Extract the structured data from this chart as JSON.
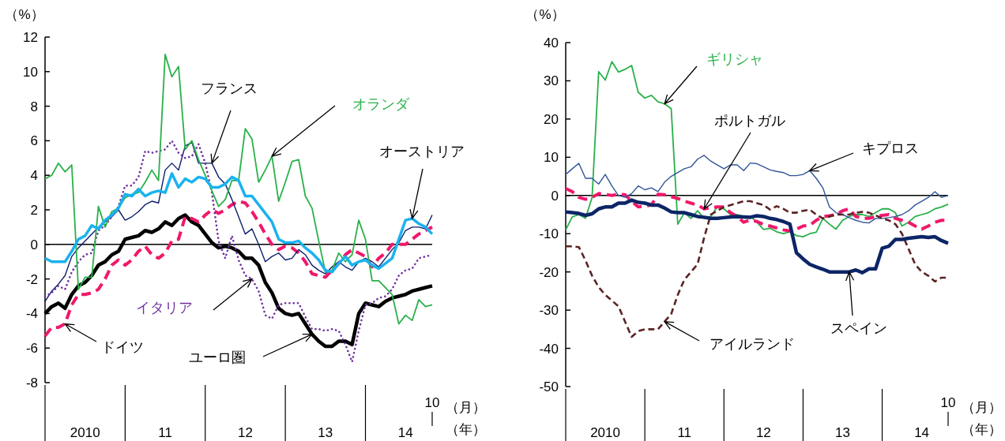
{
  "chart_data": [
    {
      "type": "line",
      "ylabel": "（%）",
      "xlabel": "（月）",
      "annotations": [
        "（年）"
      ],
      "categories": [
        null,
        null,
        null,
        null,
        null,
        null,
        "2010",
        null,
        null,
        null,
        null,
        null,
        null,
        null,
        null,
        null,
        null,
        null,
        "11",
        null,
        null,
        null,
        null,
        null,
        null,
        null,
        null,
        null,
        null,
        null,
        "12",
        null,
        null,
        null,
        null,
        null,
        null,
        null,
        null,
        null,
        null,
        null,
        "13",
        null,
        null,
        null,
        null,
        null,
        null,
        null,
        null,
        null,
        null,
        null,
        "14",
        null,
        null,
        null,
        "10"
      ],
      "ylim": [
        -8,
        12
      ],
      "yticks": [
        -8,
        -6,
        -4,
        -2,
        0,
        2,
        4,
        6,
        8,
        10,
        12
      ],
      "ref_lines": [
        {
          "axis": "y",
          "value": 0,
          "color": "#000000"
        }
      ],
      "series": [
        {
          "name": "ユーロ圏",
          "color": "#000000",
          "line_style": "solid",
          "values": [
            -4.0,
            -3.6,
            -3.4,
            -3.7,
            -2.9,
            -2.4,
            -2.2,
            -1.8,
            -1.2,
            -1.0,
            -0.6,
            -0.4,
            0.3,
            0.4,
            0.5,
            0.8,
            0.7,
            0.9,
            1.3,
            1.1,
            1.5,
            1.7,
            1.3,
            1.1,
            0.6,
            0.1,
            -0.2,
            -0.1,
            -0.2,
            -0.4,
            -0.8,
            -0.8,
            -1.2,
            -2.2,
            -2.8,
            -3.7,
            -4.0,
            -4.1,
            -4.0,
            -4.6,
            -5.2,
            -5.6,
            -5.9,
            -5.9,
            -5.6,
            -5.6,
            -5.8,
            -4.0,
            -3.4,
            -3.5,
            -3.6,
            -3.3,
            -3.1,
            -3.0,
            -2.9,
            -2.7,
            -2.6,
            -2.5,
            -2.4
          ]
        },
        {
          "name": "ドイツ",
          "color": "#f0186a",
          "line_style": "dashed",
          "values": [
            -5.3,
            -4.8,
            -4.8,
            -4.6,
            -3.5,
            -2.9,
            -2.9,
            -2.8,
            -2.6,
            -2.0,
            -1.2,
            -0.9,
            -1.2,
            -0.9,
            -0.4,
            -0.1,
            -0.6,
            -0.8,
            -0.5,
            0.2,
            0.3,
            1.6,
            1.5,
            1.3,
            1.7,
            2.0,
            1.8,
            2.0,
            2.3,
            2.5,
            2.4,
            1.9,
            1.3,
            0.6,
            0.0,
            -0.3,
            -0.1,
            -0.2,
            -0.5,
            -1.0,
            -1.7,
            -1.8,
            -1.9,
            -1.5,
            -1.1,
            -0.6,
            -0.3,
            -0.5,
            -0.7,
            -1.3,
            -0.8,
            -0.5,
            0.0,
            0.0,
            0.0,
            0.3,
            0.6,
            0.8,
            1.0
          ]
        },
        {
          "name": "フランス",
          "color": "#0d1f6e",
          "line_style": "solid",
          "values": [
            -3.3,
            -2.7,
            -2.3,
            -1.8,
            -0.7,
            -0.2,
            0.2,
            0.6,
            1.0,
            1.3,
            1.6,
            2.0,
            1.4,
            1.6,
            1.9,
            2.3,
            2.5,
            2.4,
            4.3,
            4.7,
            4.3,
            5.7,
            5.9,
            4.7,
            4.7,
            4.7,
            3.9,
            3.5,
            2.6,
            1.6,
            0.6,
            0.9,
            0.0,
            -1.0,
            -0.7,
            -0.5,
            -0.9,
            -0.8,
            -0.3,
            -0.6,
            -1.2,
            -1.5,
            -1.7,
            -1.3,
            -1.0,
            -1.3,
            -1.5,
            -1.0,
            -0.8,
            -1.0,
            -1.3,
            -0.8,
            -0.3,
            0.1,
            0.8,
            1.0,
            1.0,
            0.9,
            1.7
          ]
        },
        {
          "name": "イタリア",
          "color": "#7030a0",
          "line_style": "dotted",
          "values": [
            -3.0,
            -2.8,
            -2.4,
            -2.6,
            -1.6,
            -1.0,
            -0.6,
            -0.5,
            0.8,
            1.1,
            1.6,
            2.2,
            3.4,
            3.4,
            3.9,
            5.4,
            5.3,
            5.4,
            5.5,
            6.0,
            5.3,
            5.0,
            5.1,
            5.8,
            4.7,
            3.0,
            0.2,
            -0.8,
            0.5,
            -0.9,
            -1.8,
            -2.0,
            -2.7,
            -4.1,
            -4.3,
            -3.5,
            -3.4,
            -3.4,
            -3.4,
            -4.2,
            -4.9,
            -4.9,
            -5.0,
            -4.9,
            -5.0,
            -5.8,
            -6.8,
            -5.0,
            -3.5,
            -3.4,
            -3.1,
            -3.0,
            -2.6,
            -1.8,
            -1.5,
            -1.4,
            -0.8,
            -0.7,
            -0.6
          ]
        },
        {
          "name": "オランダ",
          "color": "#2ab04a",
          "line_style": "solid",
          "values": [
            3.8,
            4.0,
            4.7,
            4.2,
            4.6,
            -2.6,
            -1.9,
            -1.9,
            2.2,
            1.0,
            1.9,
            2.1,
            2.7,
            2.9,
            3.0,
            3.6,
            4.3,
            3.7,
            11.0,
            9.7,
            10.3,
            5.5,
            6.0,
            4.9,
            4.0,
            3.1,
            2.2,
            2.6,
            3.7,
            3.7,
            6.7,
            6.1,
            3.6,
            4.3,
            5.1,
            2.5,
            3.6,
            4.8,
            4.9,
            2.8,
            2.1,
            0.2,
            -1.6,
            -1.5,
            -0.5,
            -1.0,
            -0.6,
            1.4,
            0.3,
            -2.1,
            -2.1,
            -2.5,
            -2.9,
            -4.6,
            -4.1,
            -4.4,
            -3.2,
            -3.6,
            -3.5
          ]
        },
        {
          "name": "オーストリア",
          "color": "#1ab2ef",
          "line_style": "solid",
          "values": [
            -0.8,
            -1.0,
            -1.0,
            -1.0,
            -0.4,
            0.3,
            0.5,
            1.1,
            0.9,
            1.4,
            1.7,
            2.1,
            2.9,
            2.8,
            3.2,
            2.8,
            3.0,
            3.1,
            3.0,
            4.1,
            3.3,
            3.8,
            3.6,
            3.9,
            3.8,
            3.3,
            3.3,
            3.5,
            3.9,
            3.7,
            2.8,
            2.8,
            2.3,
            1.8,
            1.3,
            0.3,
            0.1,
            0.1,
            0.2,
            -0.2,
            -0.5,
            -0.9,
            -1.5,
            -1.6,
            -1.1,
            -0.7,
            -1.2,
            -1.0,
            -0.9,
            -1.2,
            -1.4,
            -1.1,
            -0.8,
            0.3,
            1.4,
            1.5,
            1.2,
            1.0,
            0.6
          ]
        }
      ]
    },
    {
      "type": "line",
      "ylabel": "（%）",
      "xlabel": "（月）",
      "annotations": [
        "（年）"
      ],
      "categories": [
        null,
        null,
        null,
        null,
        null,
        null,
        "2010",
        null,
        null,
        null,
        null,
        null,
        null,
        null,
        null,
        null,
        null,
        null,
        "11",
        null,
        null,
        null,
        null,
        null,
        null,
        null,
        null,
        null,
        null,
        null,
        "12",
        null,
        null,
        null,
        null,
        null,
        null,
        null,
        null,
        null,
        null,
        null,
        "13",
        null,
        null,
        null,
        null,
        null,
        null,
        null,
        null,
        null,
        null,
        null,
        "14",
        null,
        null,
        null,
        "10"
      ],
      "ylim": [
        -50,
        40
      ],
      "yticks": [
        -50,
        -40,
        -30,
        -20,
        -10,
        0,
        10,
        20,
        30,
        40
      ],
      "ref_lines": [
        {
          "axis": "y",
          "value": 0,
          "color": "#000000"
        }
      ],
      "series": [
        {
          "name": "ギリシャ",
          "color": "#2ab04a",
          "line_style": "solid",
          "values": [
            -9,
            -5.6,
            -5,
            -6,
            -0.5,
            32.4,
            30.2,
            35,
            32.3,
            33,
            34,
            27,
            25.5,
            26.2,
            24.5,
            24,
            22.7,
            -7.5,
            -4.5,
            -6,
            -4,
            -6,
            -5.5,
            -3,
            -3.5,
            -5,
            -5,
            -5.5,
            -5.5,
            -7,
            -8.9,
            -8.6,
            -9.5,
            -10,
            -9.5,
            -10.5,
            -10.8,
            -10,
            -9.6,
            -6,
            -7.5,
            -8.8,
            -6.5,
            -5.5,
            -5,
            -5,
            -5.5,
            -4.5,
            -3.5,
            -3.5,
            -4.5,
            -8,
            -7,
            -5.5,
            -5,
            -4.5,
            -3.5,
            -3,
            -2.3
          ]
        },
        {
          "name": "ポルトガル",
          "color": "#f0186a",
          "line_style": "dashed",
          "values": [
            1.8,
            1,
            -0.5,
            -1,
            -0.5,
            0.5,
            0.3,
            0,
            0.3,
            0.2,
            -1.5,
            -3,
            -2.8,
            -2.5,
            0.3,
            0.2,
            -0.3,
            -0.8,
            -1.5,
            -2,
            -2.5,
            -3.5,
            -3.2,
            -3,
            -3,
            -4.5,
            -5.5,
            -7,
            -6.4,
            -6.8,
            -7.6,
            -8,
            -8.5,
            -9,
            -9.3,
            -8.8,
            -8,
            -7.8,
            -6.5,
            -5.5,
            -5.3,
            -5,
            -4,
            -3.5,
            -5.5,
            -6,
            -6,
            -5.5,
            -5.2,
            -5,
            -6,
            -6.5,
            -7,
            -8,
            -8.8,
            -8,
            -7,
            -6.5,
            -6.5
          ]
        },
        {
          "name": "キプロス",
          "color": "#2f5597",
          "line_style": "solid",
          "values": [
            5.5,
            7,
            8.4,
            4.5,
            4.5,
            3,
            5.5,
            2.5,
            0,
            -0.5,
            0.5,
            2.5,
            1.5,
            2,
            1,
            3.5,
            5,
            6,
            7,
            7.5,
            9.5,
            10.5,
            9,
            8,
            7,
            8,
            8,
            6.5,
            8.5,
            8.3,
            7.5,
            6.7,
            6.3,
            6,
            5.2,
            5.2,
            5.5,
            6.5,
            4.5,
            2,
            -3,
            -4.5,
            -5,
            -5.8,
            -6.5,
            -7,
            -7.2,
            -6,
            -6,
            -5.8,
            -5.5,
            -5,
            -4,
            -2.5,
            -1.5,
            -0.5,
            1,
            -0.5,
            0
          ]
        },
        {
          "name": "アイルランド",
          "color": "#5c2323",
          "line_style": "dashed",
          "values": [
            -13.3,
            -13.3,
            -13.5,
            -17,
            -21,
            -24,
            -26,
            -27.5,
            -29,
            -33,
            -37,
            -35.5,
            -35,
            -35,
            -35,
            -33,
            -31,
            -26,
            -22,
            -20,
            -18,
            -11,
            -5,
            -4,
            -3,
            -2.5,
            -2,
            -1.5,
            -1.5,
            -2,
            -2.5,
            -3.7,
            -2.8,
            -3.5,
            -4.5,
            -4.5,
            -4,
            -3.7,
            -5,
            -6,
            -5.5,
            -5,
            -5,
            -5,
            -4.5,
            -4.3,
            -4.5,
            -5.2,
            -6,
            -6.5,
            -7.5,
            -10,
            -14,
            -18,
            -20,
            -21,
            -22.5,
            -21.5,
            -21.5
          ]
        },
        {
          "name": "スペイン",
          "color": "#0c2566",
          "line_style": "solid",
          "values": [
            -4.3,
            -4.5,
            -4.7,
            -5.2,
            -4.8,
            -3.5,
            -3,
            -3,
            -2,
            -2,
            -1.2,
            -1.8,
            -2,
            -2.5,
            -2.5,
            -3.3,
            -4.3,
            -4.5,
            -4.5,
            -5,
            -5.5,
            -5.7,
            -6,
            -6,
            -5.8,
            -5.6,
            -5.5,
            -5.6,
            -5.7,
            -5.3,
            -5.5,
            -6,
            -6.3,
            -6.8,
            -7.5,
            -15,
            -16.6,
            -18,
            -18.7,
            -19.3,
            -20,
            -20,
            -20,
            -20,
            -19.5,
            -20.2,
            -19.2,
            -19.2,
            -13.8,
            -13.3,
            -11.5,
            -11.5,
            -11.2,
            -11,
            -10.8,
            -11,
            -10.8,
            -11.8,
            -12.5
          ]
        }
      ]
    }
  ]
}
